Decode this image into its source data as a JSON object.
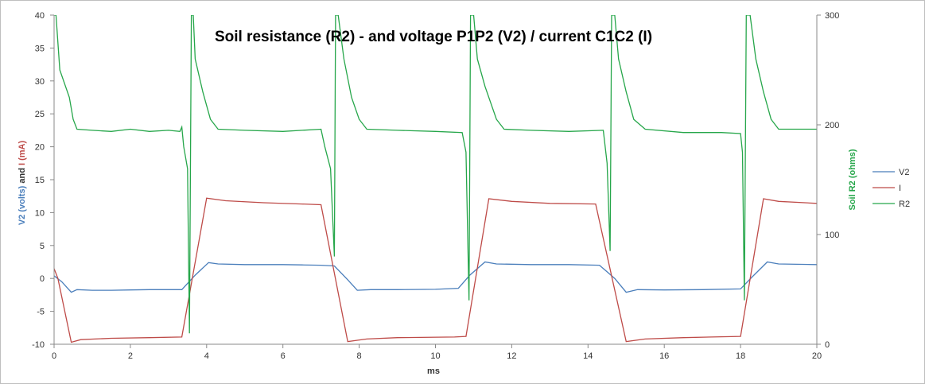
{
  "chart_data": {
    "type": "line",
    "title": "Soil resistance (R2) - and voltage P1P2 (V2) / current C1C2 (I)",
    "xlabel": "ms",
    "ylabel_left_parts": [
      {
        "text": "V2 (volts)",
        "color": "#4a7ebb"
      },
      {
        "text": " and ",
        "color": "#333333"
      },
      {
        "text": "I (mA)",
        "color": "#be4b48"
      }
    ],
    "ylabel_right": "Soil R2 (ohms)",
    "xlim": [
      0,
      20
    ],
    "ylim_left": [
      -10,
      40
    ],
    "ylim_right": [
      0,
      300
    ],
    "x_ticks": [
      0,
      2,
      4,
      6,
      8,
      10,
      12,
      14,
      16,
      18,
      20
    ],
    "y_left_ticks": [
      -10,
      -5,
      0,
      5,
      10,
      15,
      20,
      25,
      30,
      35,
      40
    ],
    "y_right_ticks": [
      0,
      100,
      200,
      300
    ],
    "legend_position": "right",
    "series": [
      {
        "name": "V2",
        "color": "#4a7ebb",
        "axis": "left",
        "points": [
          [
            0,
            0.4
          ],
          [
            0.2,
            -0.5
          ],
          [
            0.45,
            -2.1
          ],
          [
            0.6,
            -1.7
          ],
          [
            1,
            -1.8
          ],
          [
            1.5,
            -1.8
          ],
          [
            2,
            -1.75
          ],
          [
            2.5,
            -1.7
          ],
          [
            3,
            -1.7
          ],
          [
            3.35,
            -1.7
          ],
          [
            3.7,
            0.5
          ],
          [
            4.05,
            2.4
          ],
          [
            4.3,
            2.2
          ],
          [
            5,
            2.1
          ],
          [
            6,
            2.1
          ],
          [
            6.5,
            2.05
          ],
          [
            7,
            2.0
          ],
          [
            7.35,
            1.9
          ],
          [
            7.7,
            -0.2
          ],
          [
            7.95,
            -1.8
          ],
          [
            8.3,
            -1.7
          ],
          [
            9,
            -1.7
          ],
          [
            10,
            -1.65
          ],
          [
            10.6,
            -1.5
          ],
          [
            10.9,
            0.5
          ],
          [
            11.3,
            2.5
          ],
          [
            11.6,
            2.2
          ],
          [
            12.5,
            2.1
          ],
          [
            13.5,
            2.1
          ],
          [
            14.3,
            2.0
          ],
          [
            14.7,
            0.0
          ],
          [
            15,
            -2.1
          ],
          [
            15.3,
            -1.7
          ],
          [
            16,
            -1.75
          ],
          [
            17,
            -1.7
          ],
          [
            18,
            -1.6
          ],
          [
            18.3,
            0.2
          ],
          [
            18.7,
            2.5
          ],
          [
            19,
            2.2
          ],
          [
            20,
            2.1
          ]
        ]
      },
      {
        "name": "I",
        "color": "#be4b48",
        "axis": "left",
        "points": [
          [
            0,
            1.5
          ],
          [
            0.1,
            0
          ],
          [
            0.45,
            -9.7
          ],
          [
            0.7,
            -9.3
          ],
          [
            1.5,
            -9.1
          ],
          [
            2.5,
            -9.0
          ],
          [
            3.35,
            -8.9
          ],
          [
            4.0,
            12.2
          ],
          [
            4.5,
            11.8
          ],
          [
            5.5,
            11.5
          ],
          [
            6.5,
            11.3
          ],
          [
            7.0,
            11.2
          ],
          [
            7.7,
            -9.6
          ],
          [
            8.2,
            -9.2
          ],
          [
            9,
            -9.0
          ],
          [
            10.5,
            -8.9
          ],
          [
            10.8,
            -8.8
          ],
          [
            11.4,
            12.1
          ],
          [
            12,
            11.7
          ],
          [
            13,
            11.4
          ],
          [
            14.2,
            11.3
          ],
          [
            15,
            -9.6
          ],
          [
            15.5,
            -9.2
          ],
          [
            16.5,
            -9.0
          ],
          [
            18,
            -8.8
          ],
          [
            18.6,
            12.1
          ],
          [
            19,
            11.7
          ],
          [
            20,
            11.4
          ]
        ]
      },
      {
        "name": "R2",
        "color": "#26a64a",
        "axis": "right",
        "points": [
          [
            0,
            300
          ],
          [
            0.05,
            300
          ],
          [
            0.15,
            250
          ],
          [
            0.3,
            235
          ],
          [
            0.4,
            225
          ],
          [
            0.5,
            205
          ],
          [
            0.6,
            196
          ],
          [
            1,
            195
          ],
          [
            1.5,
            194
          ],
          [
            2,
            196
          ],
          [
            2.5,
            194
          ],
          [
            3,
            195
          ],
          [
            3.3,
            194
          ],
          [
            3.35,
            198
          ],
          [
            3.4,
            180
          ],
          [
            3.5,
            160
          ],
          [
            3.55,
            10
          ],
          [
            3.6,
            300
          ],
          [
            3.65,
            300
          ],
          [
            3.7,
            260
          ],
          [
            3.9,
            230
          ],
          [
            4.1,
            205
          ],
          [
            4.3,
            196
          ],
          [
            5,
            195
          ],
          [
            6,
            194
          ],
          [
            7,
            196
          ],
          [
            7.1,
            180
          ],
          [
            7.25,
            160
          ],
          [
            7.35,
            80
          ],
          [
            7.38,
            300
          ],
          [
            7.45,
            300
          ],
          [
            7.6,
            260
          ],
          [
            7.8,
            225
          ],
          [
            8.0,
            205
          ],
          [
            8.2,
            196
          ],
          [
            9,
            195
          ],
          [
            10,
            194
          ],
          [
            10.7,
            193
          ],
          [
            10.8,
            175
          ],
          [
            10.88,
            40
          ],
          [
            10.92,
            300
          ],
          [
            11.0,
            300
          ],
          [
            11.1,
            260
          ],
          [
            11.3,
            235
          ],
          [
            11.6,
            205
          ],
          [
            11.8,
            196
          ],
          [
            12.5,
            195
          ],
          [
            13.5,
            194
          ],
          [
            14.4,
            195
          ],
          [
            14.5,
            165
          ],
          [
            14.58,
            85
          ],
          [
            14.62,
            300
          ],
          [
            14.7,
            300
          ],
          [
            14.8,
            260
          ],
          [
            15.0,
            230
          ],
          [
            15.2,
            205
          ],
          [
            15.5,
            196
          ],
          [
            16.5,
            193
          ],
          [
            17.5,
            193
          ],
          [
            18.0,
            192
          ],
          [
            18.05,
            175
          ],
          [
            18.1,
            40
          ],
          [
            18.15,
            300
          ],
          [
            18.25,
            300
          ],
          [
            18.4,
            260
          ],
          [
            18.6,
            230
          ],
          [
            18.8,
            205
          ],
          [
            19.0,
            196
          ],
          [
            20,
            196
          ]
        ]
      }
    ]
  }
}
